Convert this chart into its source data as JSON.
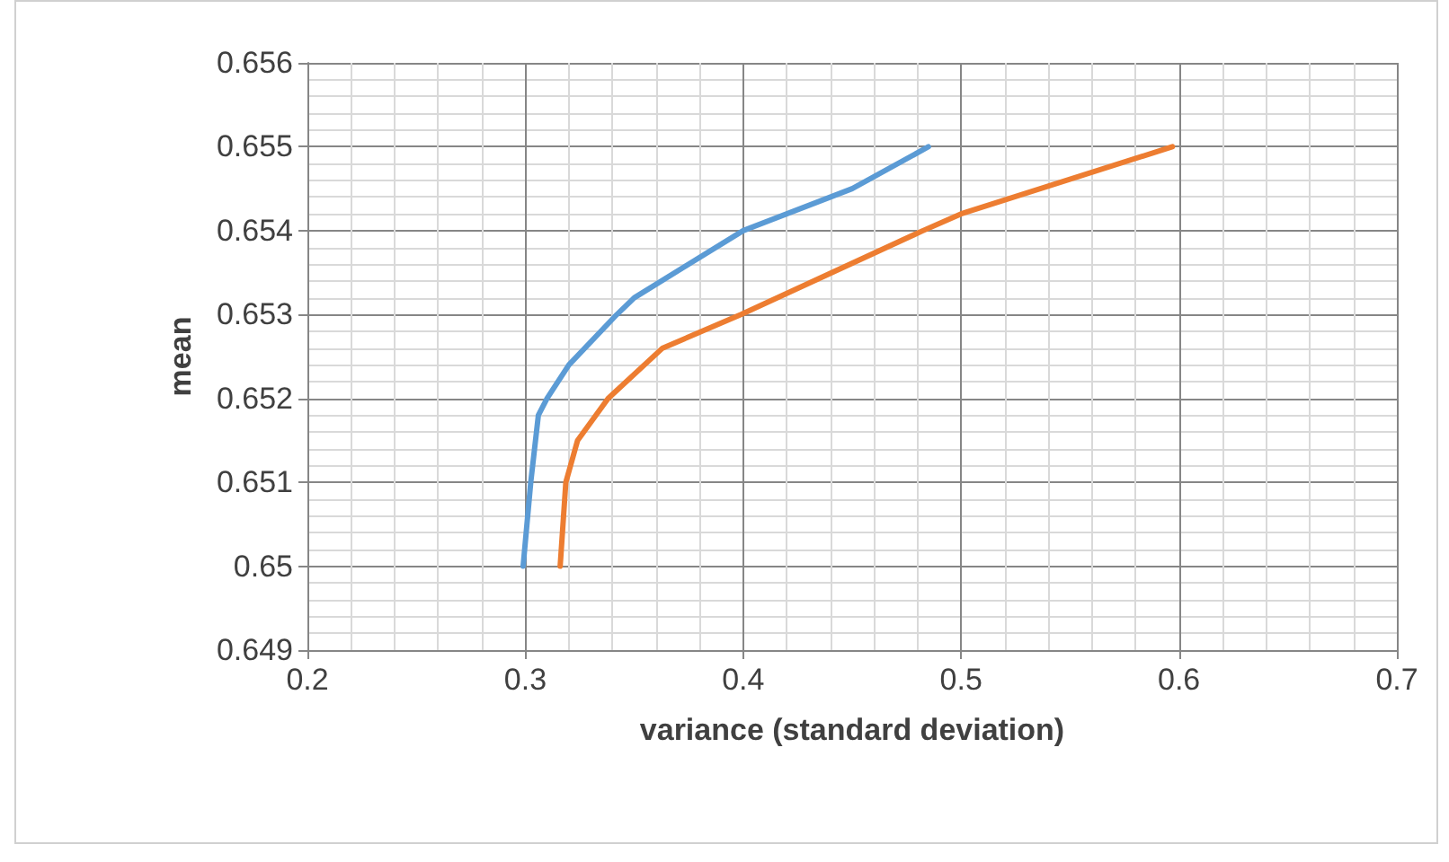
{
  "chart_data": {
    "type": "line",
    "xlabel": "variance (standard deviation)",
    "ylabel": "mean",
    "xlim": [
      0.2,
      0.7
    ],
    "xticks": [
      0.2,
      0.3,
      0.4,
      0.5,
      0.6,
      0.7
    ],
    "ylim": [
      0.649,
      0.656
    ],
    "yticks": [
      0.649,
      0.65,
      0.651,
      0.652,
      0.653,
      0.654,
      0.655,
      0.656
    ],
    "grid": true,
    "marker": "none",
    "line_style": "solid",
    "series": [
      {
        "color": "#5b9bd5",
        "x": [
          0.299,
          0.3025,
          0.306,
          0.31,
          0.32,
          0.342,
          0.35,
          0.4,
          0.45,
          0.485
        ],
        "values": [
          0.65,
          0.651,
          0.6518,
          0.652,
          0.6524,
          0.653,
          0.6532,
          0.654,
          0.6545,
          0.655
        ]
      },
      {
        "color": "#ed7d31",
        "x": [
          0.316,
          0.3186,
          0.324,
          0.338,
          0.363,
          0.399,
          0.4825,
          0.5,
          0.597
        ],
        "values": [
          0.65,
          0.651,
          0.6515,
          0.652,
          0.6526,
          0.653,
          0.654,
          0.6542,
          0.655
        ]
      }
    ]
  }
}
